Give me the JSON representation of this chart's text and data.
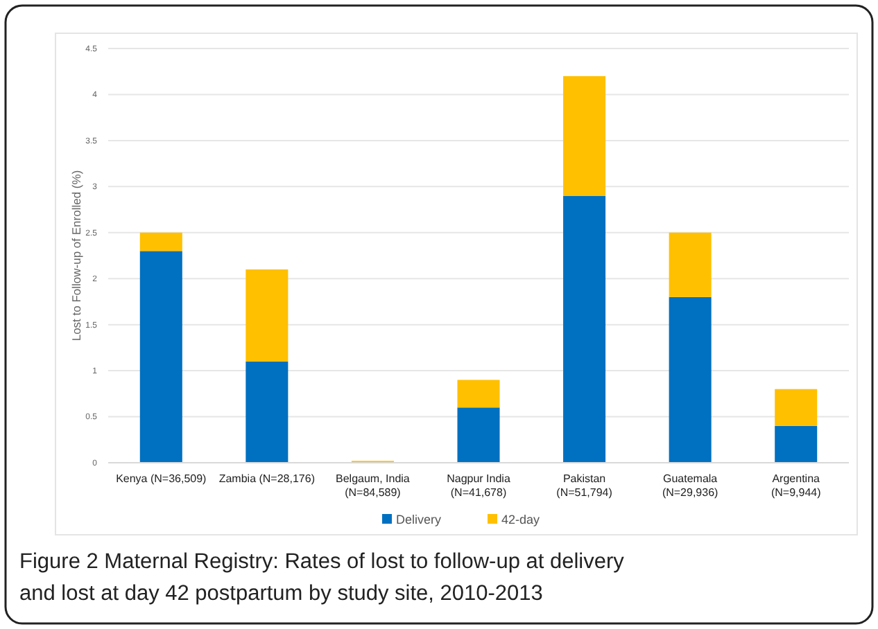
{
  "chart_data": {
    "type": "bar",
    "title": "Figure 2 Maternal Registry: Rates of lost to follow-up at delivery and lost at day 42 postpartum by study site, 2010-2013",
    "ylabel": "Lost to Follow-up of Enrolled (%)",
    "categories": [
      "Kenya (N=36,509)",
      "Zambia (N=28,176)",
      "Belgaum, India\n(N=84,589)",
      "Nagpur India\n(N=41,678)",
      "Pakistan\n(N=51,794)",
      "Guatemala\n(N=29,936)",
      "Argentina\n(N=9,944)"
    ],
    "series": [
      {
        "name": "Delivery",
        "color": "#0070c0",
        "values": [
          2.3,
          1.1,
          null,
          0.6,
          2.9,
          1.8,
          0.4
        ]
      },
      {
        "name": "42-day",
        "color": "#ffc000",
        "values": [
          0.2,
          1.0,
          0.02,
          0.3,
          1.3,
          0.7,
          0.4
        ]
      }
    ],
    "stacked": true,
    "ylim": [
      0,
      4.5
    ],
    "yticks": [
      0,
      0.5,
      1,
      1.5,
      2,
      2.5,
      3,
      3.5,
      4,
      4.5
    ],
    "grid": "y",
    "legend": "bottom"
  }
}
